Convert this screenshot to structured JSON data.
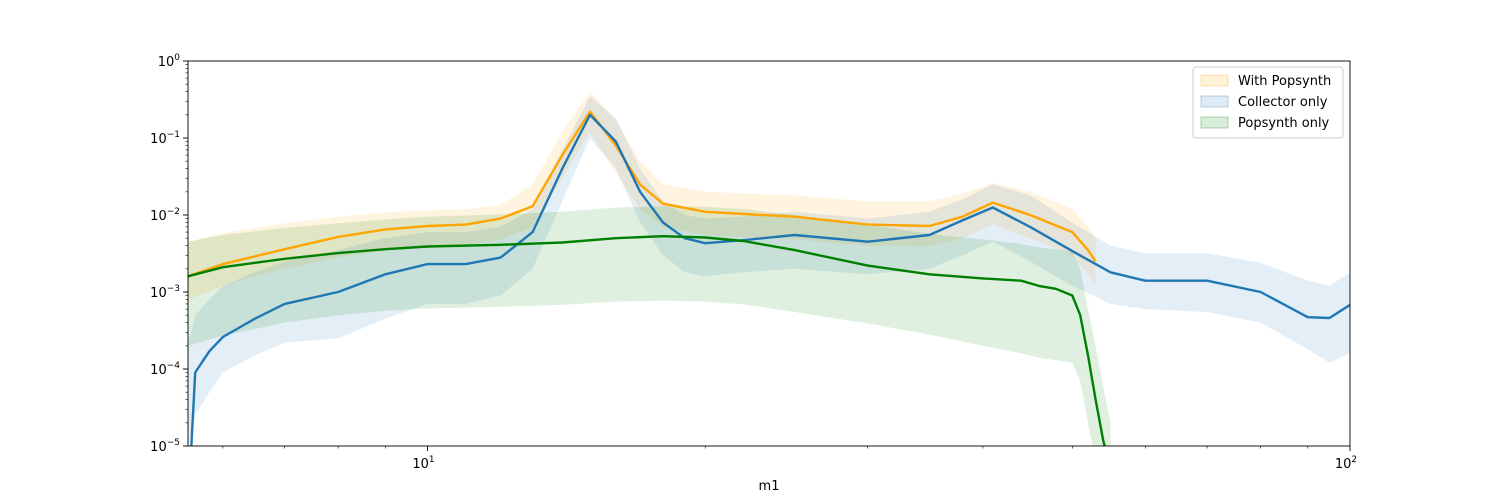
{
  "chart_data": {
    "type": "line",
    "title": "",
    "xlabel": "m1",
    "ylabel": "",
    "xscale": "log",
    "yscale": "log",
    "xlim": [
      5.5,
      100
    ],
    "ylim": [
      1e-05,
      1
    ],
    "grid": false,
    "legend_position": "top-right",
    "x_ticks": [
      {
        "value": 10,
        "base": "10",
        "exp": "1"
      },
      {
        "value": 100,
        "base": "10",
        "exp": "2"
      }
    ],
    "y_ticks": [
      {
        "value": 1e-05,
        "base": "10",
        "exp": "−5"
      },
      {
        "value": 0.0001,
        "base": "10",
        "exp": "−4"
      },
      {
        "value": 0.001,
        "base": "10",
        "exp": "−3"
      },
      {
        "value": 0.01,
        "base": "10",
        "exp": "−2"
      },
      {
        "value": 0.1,
        "base": "10",
        "exp": "−1"
      },
      {
        "value": 1,
        "base": "10",
        "exp": "0"
      }
    ],
    "legend": [
      {
        "label": "With Popsynth",
        "color": "#ffa500"
      },
      {
        "label": "Collector only",
        "color": "#1f77b4"
      },
      {
        "label": "Popsynth only",
        "color": "#008000"
      }
    ],
    "series": [
      {
        "key": "with_popsynth",
        "color": "#ffa500",
        "x": [
          5.5,
          6,
          6.5,
          7,
          8,
          9,
          10,
          11,
          12,
          13,
          14,
          15,
          16,
          17,
          18,
          20,
          22,
          25,
          30,
          35,
          38,
          41,
          45,
          50,
          52,
          53
        ],
        "y": [
          0.0016,
          0.0023,
          0.0029,
          0.0036,
          0.0052,
          0.0065,
          0.0072,
          0.0075,
          0.009,
          0.013,
          0.06,
          0.22,
          0.08,
          0.025,
          0.014,
          0.011,
          0.0103,
          0.0095,
          0.0075,
          0.0072,
          0.0095,
          0.0145,
          0.01,
          0.006,
          0.0035,
          0.0025
        ],
        "upper": [
          0.0045,
          0.0058,
          0.0068,
          0.0078,
          0.0095,
          0.0108,
          0.0115,
          0.0118,
          0.0135,
          0.025,
          0.12,
          0.4,
          0.17,
          0.05,
          0.025,
          0.02,
          0.019,
          0.018,
          0.015,
          0.015,
          0.019,
          0.026,
          0.02,
          0.012,
          0.007,
          0.005
        ],
        "lower": [
          0.0008,
          0.0012,
          0.0016,
          0.002,
          0.0028,
          0.0035,
          0.0038,
          0.004,
          0.0048,
          0.007,
          0.03,
          0.12,
          0.035,
          0.012,
          0.007,
          0.0055,
          0.0052,
          0.0048,
          0.004,
          0.0039,
          0.005,
          0.0075,
          0.005,
          0.003,
          0.0017,
          0.0012
        ]
      },
      {
        "key": "collector_only",
        "color": "#1f77b4",
        "x": [
          5.5,
          5.6,
          5.8,
          6,
          6.5,
          7,
          8,
          9,
          10,
          11,
          12,
          13,
          14,
          15,
          16,
          17,
          18,
          19,
          20,
          22,
          25,
          30,
          35,
          38,
          41,
          45,
          50,
          55,
          60,
          70,
          80,
          90,
          95,
          100
        ],
        "y": [
          1.5e-06,
          9e-05,
          0.00017,
          0.00026,
          0.00045,
          0.0007,
          0.001,
          0.0017,
          0.0023,
          0.0023,
          0.0028,
          0.006,
          0.04,
          0.2,
          0.09,
          0.02,
          0.008,
          0.005,
          0.0043,
          0.0047,
          0.0055,
          0.0045,
          0.0055,
          0.0085,
          0.0125,
          0.007,
          0.0034,
          0.0018,
          0.0014,
          0.0014,
          0.001,
          0.00047,
          0.00046,
          0.00068
        ],
        "upper": [
          0.0002,
          0.0005,
          0.0008,
          0.0012,
          0.0018,
          0.0025,
          0.0035,
          0.005,
          0.006,
          0.006,
          0.007,
          0.012,
          0.07,
          0.35,
          0.18,
          0.04,
          0.015,
          0.01,
          0.009,
          0.0095,
          0.011,
          0.009,
          0.011,
          0.016,
          0.025,
          0.018,
          0.008,
          0.004,
          0.0032,
          0.0032,
          0.0024,
          0.0014,
          0.0012,
          0.0018
        ],
        "lower": [
          1e-05,
          2.5e-05,
          5e-05,
          9e-05,
          0.00015,
          0.00022,
          0.00025,
          0.00045,
          0.0007,
          0.0007,
          0.0009,
          0.002,
          0.015,
          0.1,
          0.04,
          0.008,
          0.003,
          0.0018,
          0.0016,
          0.0018,
          0.002,
          0.0017,
          0.002,
          0.003,
          0.0045,
          0.0025,
          0.0012,
          0.0007,
          0.0006,
          0.00055,
          0.0004,
          0.00018,
          0.00012,
          0.00016
        ]
      },
      {
        "key": "popsynth_only",
        "color": "#008000",
        "x": [
          5.5,
          6,
          7,
          8,
          9,
          10,
          12,
          14,
          16,
          18,
          20,
          22,
          25,
          30,
          35,
          40,
          44,
          46,
          48,
          50,
          51,
          52,
          53,
          54,
          55
        ],
        "y": [
          0.0016,
          0.0021,
          0.0027,
          0.0032,
          0.0036,
          0.0039,
          0.0041,
          0.0044,
          0.005,
          0.0053,
          0.0051,
          0.0046,
          0.0035,
          0.0022,
          0.0017,
          0.0015,
          0.0014,
          0.0012,
          0.0011,
          0.0009,
          0.0005,
          0.00015,
          4e-05,
          1.2e-05,
          5e-06
        ],
        "upper": [
          0.0045,
          0.0055,
          0.0068,
          0.0078,
          0.0088,
          0.0095,
          0.0102,
          0.011,
          0.0125,
          0.013,
          0.0128,
          0.012,
          0.01,
          0.0075,
          0.0057,
          0.0048,
          0.0042,
          0.0038,
          0.0036,
          0.0033,
          0.002,
          0.0006,
          0.0002,
          6e-05,
          2e-05
        ],
        "lower": [
          0.0002,
          0.00027,
          0.0004,
          0.0005,
          0.00057,
          0.00061,
          0.00064,
          0.00068,
          0.00075,
          0.00077,
          0.00075,
          0.00069,
          0.00055,
          0.00039,
          0.00028,
          0.0002,
          0.00016,
          0.00014,
          0.00013,
          0.00012,
          7e-05,
          2e-05,
          6e-06,
          2e-06,
          1e-06
        ]
      }
    ]
  }
}
